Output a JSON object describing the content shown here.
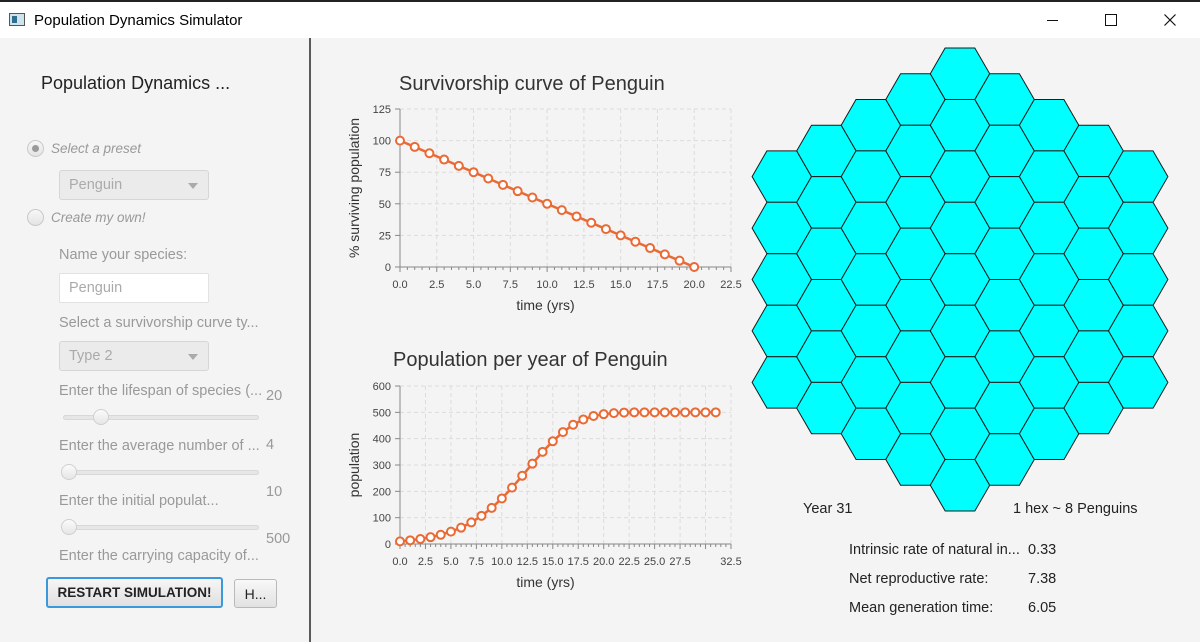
{
  "window": {
    "title": "Population Dynamics Simulator"
  },
  "sidebar": {
    "heading": "Population Dynamics ...",
    "preset_radio_label": "Select a preset",
    "preset_value": "Penguin",
    "custom_radio_label": "Create my own!",
    "name_label": "Name your species:",
    "name_value": "Penguin",
    "curve_label": "Select a survivorship curve ty...",
    "curve_value": "Type 2",
    "lifespan_label": "Enter the lifespan of species (...",
    "lifespan_value": "20",
    "lifespan_level": 0.18,
    "offspring_label": "Enter the average number of ...",
    "offspring_value": "4",
    "offspring_level": 0.0,
    "initial_label": "Enter the initial populat...",
    "initial_value": "10",
    "initial_level": 0.0,
    "capacity_label": "Enter the carrying capacity of...",
    "capacity_value": "500",
    "restart_label": "RESTART SIMULATION!",
    "help_label": "H..."
  },
  "colors": {
    "accent": "#3a98dc",
    "series": "#ea6a35",
    "hex_fill": "#00ffff",
    "hex_stroke": "#1a1a1a"
  },
  "chart_data": [
    {
      "type": "line",
      "title": "Survivorship curve of Penguin",
      "xlabel": "time (yrs)",
      "ylabel": "% surviving population",
      "xlim": [
        0,
        22.5
      ],
      "ylim": [
        0,
        125
      ],
      "xticks": [
        "0.0",
        "2.5",
        "5.0",
        "7.5",
        "10.0",
        "12.5",
        "15.0",
        "17.5",
        "20.0",
        "22.5"
      ],
      "yticks": [
        "0",
        "25",
        "50",
        "75",
        "100",
        "125"
      ],
      "grid": true,
      "series": [
        {
          "x": [
            0,
            1,
            2,
            3,
            4,
            5,
            6,
            7,
            8,
            9,
            10,
            11,
            12,
            13,
            14,
            15,
            16,
            17,
            18,
            19,
            20
          ],
          "values": [
            100,
            95,
            90,
            85,
            80,
            75,
            70,
            65,
            60,
            55,
            50,
            45,
            40,
            35,
            30,
            25,
            20,
            15,
            10,
            5,
            0
          ]
        }
      ]
    },
    {
      "type": "line",
      "title": "Population per year of Penguin",
      "xlabel": "time (yrs)",
      "ylabel": "population",
      "xlim": [
        0,
        32.5
      ],
      "ylim": [
        0,
        600
      ],
      "xticks": [
        "0.0",
        "2.5",
        "5.0",
        "7.5",
        "10.0",
        "12.5",
        "15.0",
        "17.5",
        "20.0",
        "22.5",
        "25.0",
        "27.5",
        "32.5"
      ],
      "yticks": [
        "0",
        "100",
        "200",
        "300",
        "400",
        "500",
        "600"
      ],
      "grid": true,
      "series": [
        {
          "x": [
            0,
            1,
            2,
            3,
            4,
            5,
            6,
            7,
            8,
            9,
            10,
            11,
            12,
            13,
            14,
            15,
            16,
            17,
            18,
            19,
            20,
            21,
            22,
            23,
            24,
            25,
            26,
            27,
            28,
            29,
            30,
            31
          ],
          "values": [
            10,
            14,
            19,
            26,
            35,
            47,
            62,
            82,
            107,
            137,
            173,
            214,
            259,
            305,
            350,
            390,
            425,
            453,
            473,
            486,
            493,
            497,
            499,
            500,
            500,
            500,
            500,
            500,
            500,
            500,
            500,
            500
          ]
        }
      ]
    }
  ],
  "hexgrid": {
    "year_label": "Year 31",
    "scale_label": "1 hex ~ 8 Penguins"
  },
  "stats": {
    "intrinsic_label": "Intrinsic rate of natural in...",
    "intrinsic_value": "0.33",
    "net_label": "Net reproductive rate:",
    "net_value": "7.38",
    "gen_label": "Mean generation time:",
    "gen_value": "6.05"
  }
}
